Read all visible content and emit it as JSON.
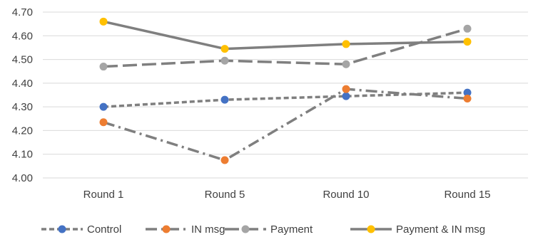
{
  "chart_data": {
    "type": "line",
    "categories": [
      "Round 1",
      "Round 5",
      "Round 10",
      "Round 15"
    ],
    "ylim": [
      4.0,
      4.7
    ],
    "yticks": [
      "4.00",
      "4.10",
      "4.20",
      "4.30",
      "4.40",
      "4.50",
      "4.60",
      "4.70"
    ],
    "grid": true,
    "legend_position": "bottom",
    "series": [
      {
        "name": "Control",
        "values": [
          4.3,
          4.33,
          4.345,
          4.36
        ],
        "color": "#4472C4",
        "line_color": "#7F7F7F",
        "dash": "short-dash"
      },
      {
        "name": "IN msg",
        "values": [
          4.235,
          4.075,
          4.375,
          4.335
        ],
        "color": "#ED7D31",
        "line_color": "#7F7F7F",
        "dash": "dash-dot"
      },
      {
        "name": "Payment",
        "values": [
          4.47,
          4.495,
          4.48,
          4.63
        ],
        "color": "#A5A5A5",
        "line_color": "#7F7F7F",
        "dash": "long-dash"
      },
      {
        "name": "Payment & IN msg",
        "values": [
          4.66,
          4.545,
          4.565,
          4.575
        ],
        "color": "#FFC000",
        "line_color": "#7F7F7F",
        "dash": "solid"
      }
    ]
  }
}
